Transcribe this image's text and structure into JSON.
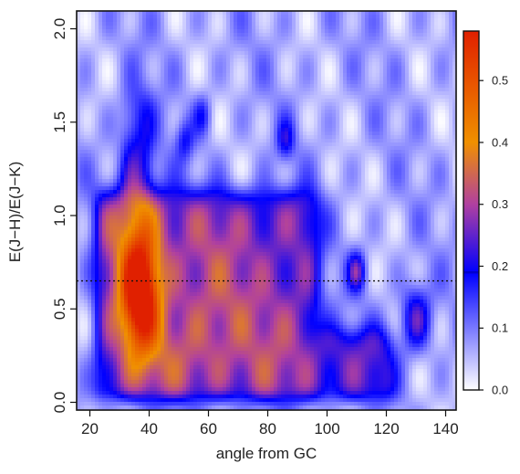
{
  "chart_data": {
    "type": "heatmap",
    "xlabel": "angle from GC",
    "ylabel": "E(J−H)/E(J−K)",
    "xlim": [
      17,
      145
    ],
    "ylim": [
      -0.04,
      2.07
    ],
    "x_ticks": [
      "20",
      "40",
      "60",
      "80",
      "100",
      "120",
      "140"
    ],
    "x_tick_values": [
      20,
      40,
      60,
      80,
      100,
      120,
      140
    ],
    "y_ticks": [
      "0.0",
      "0.5",
      "1.0",
      "1.5",
      "2.0"
    ],
    "y_tick_values": [
      0.0,
      0.5,
      1.0,
      1.5,
      2.0
    ],
    "reference_line": {
      "y": 0.65,
      "style": "dotted"
    },
    "colorbar": {
      "range": [
        0,
        0.58
      ],
      "ticks": [
        "0.0",
        "0.1",
        "0.2",
        "0.3",
        "0.4",
        "0.5"
      ],
      "tick_values": [
        0.0,
        0.1,
        0.2,
        0.3,
        0.4,
        0.5
      ],
      "marker": 0.19,
      "stops": [
        {
          "v": 0.0,
          "color": "#ffffff"
        },
        {
          "v": 0.19,
          "color": "#0000ff"
        },
        {
          "v": 0.3,
          "color": "#b040a0"
        },
        {
          "v": 0.4,
          "color": "#f09000"
        },
        {
          "v": 0.58,
          "color": "#e02000"
        }
      ]
    },
    "density_features": [
      {
        "x": 37,
        "y": 0.57,
        "sx": 4.5,
        "sy": 0.22,
        "amp": 0.36
      },
      {
        "x": 37,
        "y": 0.9,
        "sx": 6,
        "sy": 0.3,
        "amp": 0.1
      },
      {
        "x": 36,
        "y": 1.3,
        "sx": 4,
        "sy": 0.3,
        "amp": 0.05
      },
      {
        "x": 60,
        "y": 0.5,
        "sx": 10,
        "sy": 0.3,
        "amp": 0.05
      },
      {
        "x": 85,
        "y": 0.3,
        "sx": 8,
        "sy": 0.2,
        "amp": 0.04
      },
      {
        "x": 50,
        "y": 0.25,
        "sx": 10,
        "sy": 0.15,
        "amp": 0.04
      }
    ],
    "plateau": {
      "x": [
        22,
        97
      ],
      "y": [
        0.02,
        1.12
      ],
      "level": 0.245
    },
    "plateau_extension": {
      "x": [
        97,
        122
      ],
      "y": [
        0.02,
        0.38
      ],
      "level": 0.22
    },
    "blobs": [
      {
        "x": 110,
        "y": 0.7,
        "r": 3,
        "amp": 0.18
      },
      {
        "x": 130,
        "y": 0.45,
        "r": 5,
        "amp": 0.18
      },
      {
        "x": 86,
        "y": 1.4,
        "r": 3,
        "amp": 0.12
      },
      {
        "x": 58,
        "y": 1.54,
        "r": 3,
        "amp": 0.1
      },
      {
        "x": 52,
        "y": 1.4,
        "r": 3,
        "amp": 0.1
      }
    ]
  }
}
